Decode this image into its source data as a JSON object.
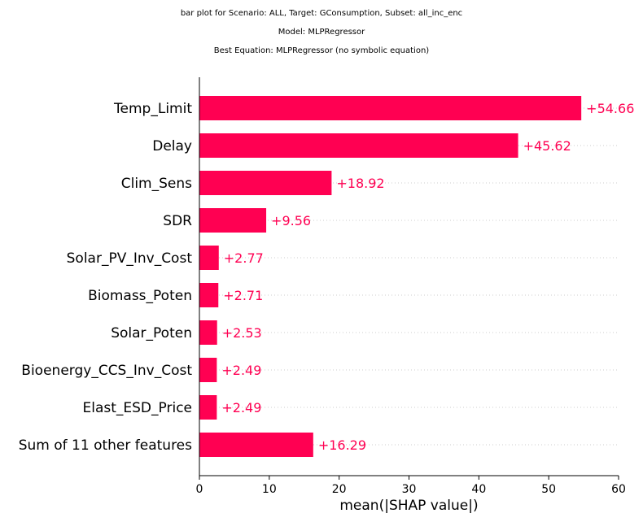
{
  "titles": [
    "bar plot for Scenario: ALL, Target: GConsumption, Subset: all_inc_enc",
    "Model: MLPRegressor",
    "Best Equation: MLPRegressor (no symbolic equation)"
  ],
  "colors": {
    "bar": "#ff0052",
    "value_text": "#ff0052",
    "gridline": "#cccccc",
    "axis": "#000000"
  },
  "chart_data": {
    "type": "bar",
    "orientation": "horizontal",
    "categories": [
      "Temp_Limit",
      "Delay",
      "Clim_Sens",
      "SDR",
      "Solar_PV_Inv_Cost",
      "Biomass_Poten",
      "Solar_Poten",
      "Bioenergy_CCS_Inv_Cost",
      "Elast_ESD_Price",
      "Sum of 11 other features"
    ],
    "values": [
      54.66,
      45.62,
      18.92,
      9.56,
      2.77,
      2.71,
      2.53,
      2.49,
      2.49,
      16.29
    ],
    "value_labels": [
      "+54.66",
      "+45.62",
      "+18.92",
      "+9.56",
      "+2.77",
      "+2.71",
      "+2.53",
      "+2.49",
      "+2.49",
      "+16.29"
    ],
    "xlabel": "mean(|SHAP value|)",
    "xlim": [
      0,
      60
    ],
    "xticks": [
      0,
      10,
      20,
      30,
      40,
      50,
      60
    ],
    "xtick_labels": [
      "0",
      "10",
      "20",
      "30",
      "40",
      "50",
      "60"
    ],
    "grid": "dotted horizontal row guides"
  }
}
